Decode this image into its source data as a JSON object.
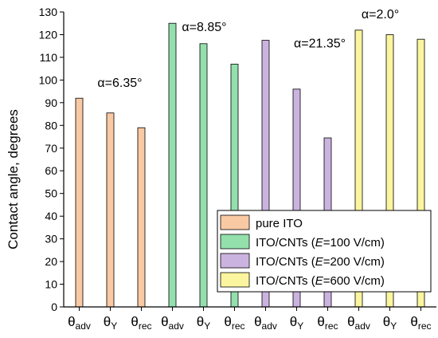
{
  "chart_data": {
    "type": "bar",
    "title": "",
    "xlabel": "",
    "ylabel": "Contact angle, degrees",
    "ylim": [
      0,
      130
    ],
    "yticks": [
      0,
      10,
      20,
      30,
      40,
      50,
      60,
      70,
      80,
      90,
      100,
      110,
      120,
      130
    ],
    "grid": false,
    "legend_position": "lower-right",
    "categories": [
      {
        "main": "θ",
        "sub": "adv"
      },
      {
        "main": "θ",
        "sub": "Y"
      },
      {
        "main": "θ",
        "sub": "rec"
      }
    ],
    "series": [
      {
        "name": "pure ITO",
        "color": "#f8c9a3",
        "values": [
          92,
          85.5,
          79
        ],
        "annotation": "α=6.35°"
      },
      {
        "name_parts": [
          "ITO/CNTs (",
          "E",
          "=100 V/cm)"
        ],
        "color": "#93e0ad",
        "values": [
          125,
          116,
          107
        ],
        "annotation": "α=8.85°"
      },
      {
        "name_parts": [
          "ITO/CNTs (",
          "E",
          "=200 V/cm)"
        ],
        "color": "#cbb3df",
        "values": [
          117.5,
          96,
          74.5
        ],
        "annotation": "α=21.35°"
      },
      {
        "name_parts": [
          "ITO/CNTs (",
          "E",
          "=600 V/cm)"
        ],
        "color": "#fbf59f",
        "values": [
          122,
          120,
          118
        ],
        "annotation": "α=2.0°"
      }
    ],
    "bar_outline_color": "#000000"
  }
}
